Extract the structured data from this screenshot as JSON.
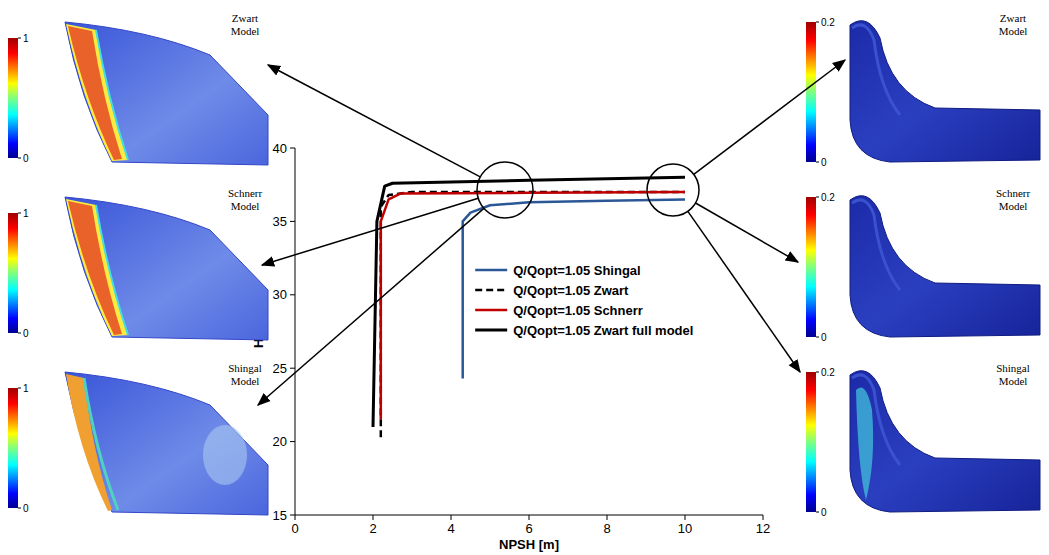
{
  "chart_data": {
    "type": "line",
    "x_label": "NPSH [m]",
    "y_label": "H [m]",
    "xlim": [
      0,
      12
    ],
    "xticks": [
      0,
      2,
      4,
      6,
      8,
      10,
      12
    ],
    "ylim": [
      15,
      40
    ],
    "yticks": [
      15,
      20,
      25,
      30,
      35,
      40
    ],
    "grid": false,
    "legend": "lower right",
    "series": [
      {
        "name": "Q/Qopt=1.05 Shingal",
        "color": "#2b5797",
        "line_style": "solid",
        "x": [
          4.3,
          4.3,
          4.5,
          5.0,
          6.0,
          8.0,
          10.0
        ],
        "values": [
          24.3,
          35.0,
          35.6,
          36.1,
          36.3,
          36.4,
          36.5
        ]
      },
      {
        "name": "Q/Qopt=1.05 Zwart",
        "color": "#000000",
        "line_style": "dashed",
        "x": [
          2.2,
          2.2,
          2.4,
          3.0,
          6.0,
          10.0
        ],
        "values": [
          20.3,
          36.0,
          36.8,
          37.0,
          37.0,
          37.0
        ]
      },
      {
        "name": "Q/Qopt=1.05 Schnerr",
        "color": "#c00000",
        "line_style": "solid",
        "x": [
          2.2,
          2.2,
          2.4,
          2.7,
          6.0,
          10.0
        ],
        "values": [
          21.5,
          35.0,
          36.5,
          36.9,
          36.95,
          37.0
        ]
      },
      {
        "name": "Q/Qopt=1.05 Zwart full model",
        "color": "#000000",
        "line_style": "solid",
        "x": [
          2.0,
          2.1,
          2.3,
          2.5,
          6.0,
          10.0
        ],
        "values": [
          21.0,
          35.0,
          37.4,
          37.6,
          37.8,
          38.0
        ]
      }
    ],
    "insets": [
      {
        "label": "Zwart Model",
        "colorbar_lim": [
          0,
          1
        ],
        "colorbar_ticks": [
          0,
          1
        ]
      },
      {
        "label": "Schnerr Model",
        "colorbar_lim": [
          0,
          1
        ],
        "colorbar_ticks": [
          0,
          1
        ]
      },
      {
        "label": "Shingal Model",
        "colorbar_lim": [
          0,
          1
        ],
        "colorbar_ticks": [
          0,
          1
        ]
      },
      {
        "label": "Zwart Model",
        "colorbar_lim": [
          0,
          0.2
        ],
        "colorbar_ticks": [
          0,
          0.2
        ]
      },
      {
        "label": "Schnerr Model",
        "colorbar_lim": [
          0,
          0.2
        ],
        "colorbar_ticks": [
          0,
          0.2
        ]
      },
      {
        "label": "Shingal Model",
        "colorbar_lim": [
          0,
          0.2
        ],
        "colorbar_ticks": [
          0,
          0.2
        ]
      }
    ]
  }
}
